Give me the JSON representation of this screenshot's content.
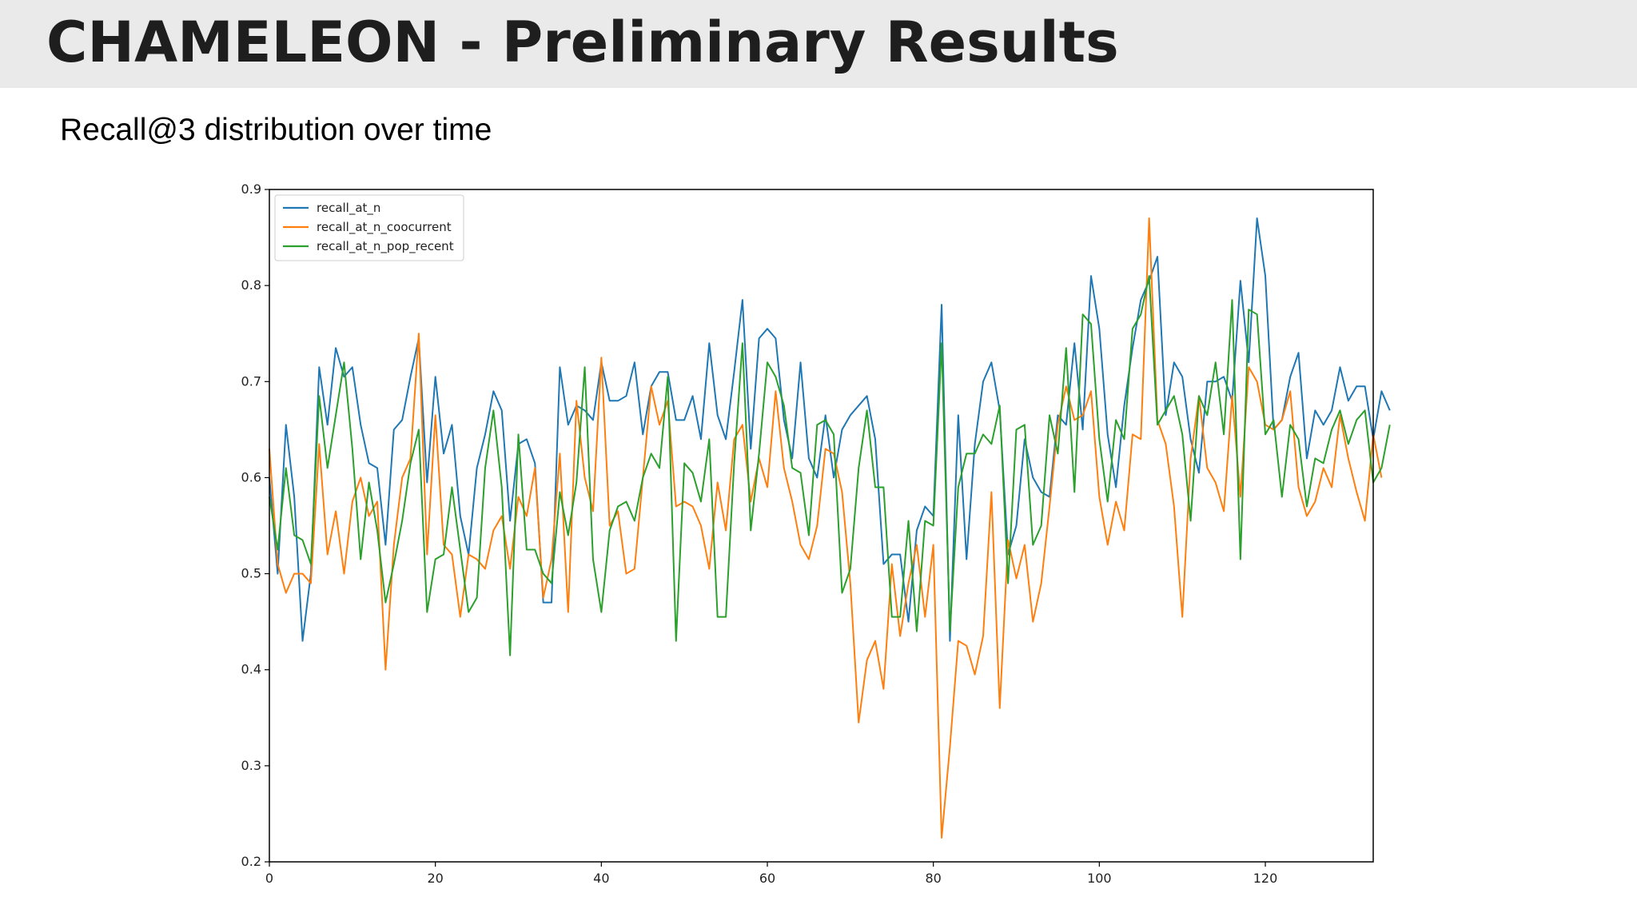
{
  "slide": {
    "title": "CHAMELEON - Preliminary Results",
    "subtitle": "Recall@3 distribution over time"
  },
  "colors": {
    "title_bar_background": "#eaeaea",
    "title_text": "#1e1e1e",
    "axis": "#000000"
  },
  "chart_data": {
    "type": "line",
    "title": "",
    "xlabel": "",
    "ylabel": "",
    "xlim": [
      0,
      133
    ],
    "ylim": [
      0.2,
      0.9
    ],
    "xticks": [
      0,
      20,
      40,
      60,
      80,
      100,
      120
    ],
    "xtick_labels": [
      "0",
      "20",
      "40",
      "60",
      "80",
      "100",
      "120"
    ],
    "yticks": [
      0.2,
      0.3,
      0.4,
      0.5,
      0.6,
      0.7,
      0.8,
      0.9
    ],
    "ytick_labels": [
      "0.2",
      "0.3",
      "0.4",
      "0.5",
      "0.6",
      "0.7",
      "0.8",
      "0.9"
    ],
    "grid": false,
    "legend_position": "top-left",
    "series": [
      {
        "name": "recall_at_n",
        "color": "#1f77b4",
        "values": [
          0.6,
          0.5,
          0.655,
          0.58,
          0.43,
          0.5,
          0.715,
          0.655,
          0.735,
          0.705,
          0.715,
          0.655,
          0.615,
          0.61,
          0.53,
          0.65,
          0.66,
          0.705,
          0.745,
          0.595,
          0.705,
          0.625,
          0.655,
          0.56,
          0.52,
          0.61,
          0.645,
          0.69,
          0.67,
          0.555,
          0.635,
          0.64,
          0.615,
          0.47,
          0.47,
          0.715,
          0.655,
          0.675,
          0.67,
          0.66,
          0.72,
          0.68,
          0.68,
          0.685,
          0.72,
          0.645,
          0.695,
          0.71,
          0.71,
          0.66,
          0.66,
          0.685,
          0.64,
          0.74,
          0.665,
          0.64,
          0.71,
          0.785,
          0.63,
          0.745,
          0.755,
          0.745,
          0.66,
          0.62,
          0.72,
          0.62,
          0.6,
          0.665,
          0.6,
          0.65,
          0.665,
          0.675,
          0.685,
          0.64,
          0.51,
          0.52,
          0.52,
          0.45,
          0.545,
          0.57,
          0.56,
          0.78,
          0.43,
          0.665,
          0.515,
          0.635,
          0.7,
          0.72,
          0.67,
          0.52,
          0.55,
          0.64,
          0.6,
          0.585,
          0.58,
          0.665,
          0.655,
          0.74,
          0.65,
          0.81,
          0.755,
          0.645,
          0.59,
          0.675,
          0.735,
          0.785,
          0.805,
          0.83,
          0.665,
          0.72,
          0.705,
          0.64,
          0.605,
          0.7,
          0.7,
          0.705,
          0.68,
          0.805,
          0.72,
          0.87,
          0.81,
          0.65,
          0.66,
          0.705,
          0.73,
          0.62,
          0.67,
          0.655,
          0.67,
          0.715,
          0.68,
          0.695,
          0.695,
          0.64,
          0.69,
          0.67
        ]
      },
      {
        "name": "recall_at_n_coocurrent",
        "color": "#ff7f0e",
        "values": [
          0.63,
          0.51,
          0.48,
          0.5,
          0.5,
          0.49,
          0.635,
          0.52,
          0.565,
          0.5,
          0.575,
          0.6,
          0.56,
          0.575,
          0.4,
          0.53,
          0.6,
          0.62,
          0.75,
          0.52,
          0.665,
          0.53,
          0.52,
          0.455,
          0.52,
          0.515,
          0.505,
          0.545,
          0.56,
          0.505,
          0.58,
          0.56,
          0.61,
          0.475,
          0.515,
          0.625,
          0.46,
          0.68,
          0.6,
          0.565,
          0.725,
          0.55,
          0.565,
          0.5,
          0.505,
          0.6,
          0.695,
          0.655,
          0.68,
          0.57,
          0.575,
          0.57,
          0.55,
          0.505,
          0.595,
          0.545,
          0.64,
          0.655,
          0.575,
          0.62,
          0.59,
          0.69,
          0.61,
          0.575,
          0.53,
          0.515,
          0.55,
          0.63,
          0.625,
          0.585,
          0.49,
          0.345,
          0.41,
          0.43,
          0.38,
          0.51,
          0.435,
          0.49,
          0.53,
          0.455,
          0.53,
          0.225,
          0.32,
          0.43,
          0.425,
          0.395,
          0.435,
          0.585,
          0.36,
          0.535,
          0.495,
          0.53,
          0.45,
          0.49,
          0.57,
          0.655,
          0.695,
          0.66,
          0.665,
          0.69,
          0.58,
          0.53,
          0.575,
          0.545,
          0.645,
          0.64,
          0.87,
          0.66,
          0.635,
          0.57,
          0.455,
          0.62,
          0.685,
          0.61,
          0.595,
          0.565,
          0.685,
          0.58,
          0.715,
          0.7,
          0.655,
          0.65,
          0.66,
          0.69,
          0.59,
          0.56,
          0.575,
          0.61,
          0.59,
          0.665,
          0.62,
          0.585,
          0.555,
          0.645,
          0.6
        ]
      },
      {
        "name": "recall_at_n_pop_recent",
        "color": "#2ca02c",
        "values": [
          0.58,
          0.525,
          0.61,
          0.54,
          0.535,
          0.51,
          0.685,
          0.61,
          0.665,
          0.72,
          0.63,
          0.515,
          0.595,
          0.545,
          0.47,
          0.51,
          0.555,
          0.615,
          0.65,
          0.46,
          0.515,
          0.52,
          0.59,
          0.525,
          0.46,
          0.475,
          0.61,
          0.67,
          0.59,
          0.415,
          0.645,
          0.525,
          0.525,
          0.5,
          0.49,
          0.585,
          0.54,
          0.595,
          0.715,
          0.515,
          0.46,
          0.545,
          0.57,
          0.575,
          0.555,
          0.6,
          0.625,
          0.61,
          0.705,
          0.43,
          0.615,
          0.605,
          0.575,
          0.64,
          0.455,
          0.455,
          0.615,
          0.74,
          0.545,
          0.625,
          0.72,
          0.705,
          0.675,
          0.61,
          0.605,
          0.54,
          0.655,
          0.66,
          0.645,
          0.48,
          0.505,
          0.61,
          0.67,
          0.59,
          0.59,
          0.455,
          0.455,
          0.555,
          0.44,
          0.555,
          0.55,
          0.74,
          0.44,
          0.59,
          0.625,
          0.625,
          0.645,
          0.635,
          0.675,
          0.49,
          0.65,
          0.655,
          0.53,
          0.55,
          0.665,
          0.625,
          0.735,
          0.585,
          0.77,
          0.76,
          0.64,
          0.575,
          0.66,
          0.64,
          0.755,
          0.77,
          0.81,
          0.655,
          0.67,
          0.685,
          0.645,
          0.555,
          0.685,
          0.665,
          0.72,
          0.645,
          0.785,
          0.515,
          0.775,
          0.77,
          0.645,
          0.66,
          0.58,
          0.655,
          0.64,
          0.57,
          0.62,
          0.615,
          0.65,
          0.67,
          0.635,
          0.66,
          0.67,
          0.595,
          0.61,
          0.655
        ]
      }
    ]
  }
}
